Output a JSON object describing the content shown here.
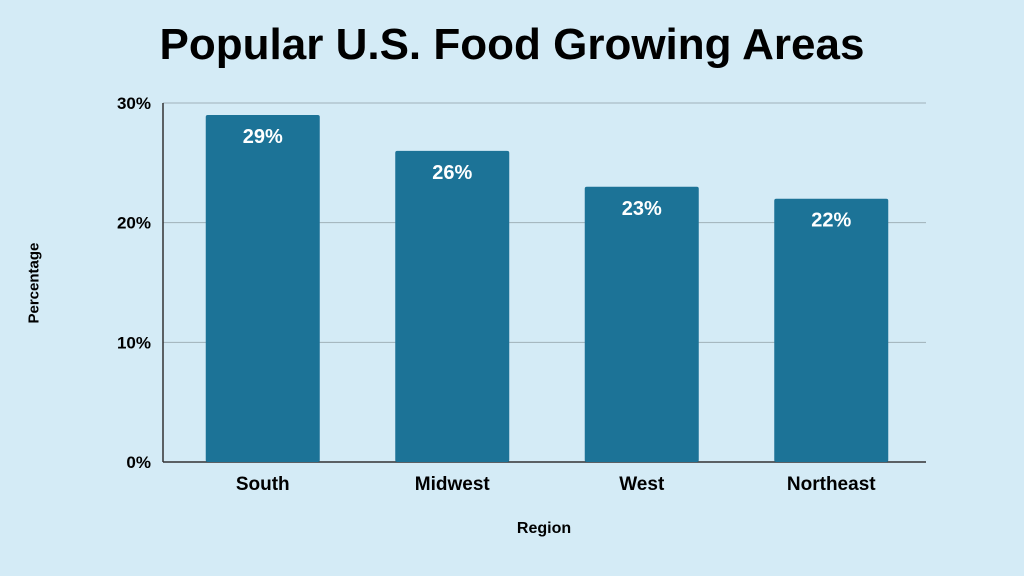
{
  "chart_data": {
    "type": "bar",
    "title": "Popular U.S. Food Growing Areas",
    "xlabel": "Region",
    "ylabel": "Percentage",
    "categories": [
      "South",
      "Midwest",
      "West",
      "Northeast"
    ],
    "values": [
      29,
      26,
      23,
      22
    ],
    "value_labels": [
      "29%",
      "26%",
      "23%",
      "22%"
    ],
    "ylim": [
      0,
      30
    ],
    "yticks": [
      0,
      10,
      20,
      30
    ],
    "ytick_labels": [
      "0%",
      "10%",
      "20%",
      "30%"
    ],
    "grid": true,
    "legend": "none",
    "colors": {
      "bar": "#1c7397",
      "background": "#d4ebf6",
      "grid": "#9fb0b9",
      "axis": "#333333",
      "bar_label": "#ffffff"
    }
  }
}
